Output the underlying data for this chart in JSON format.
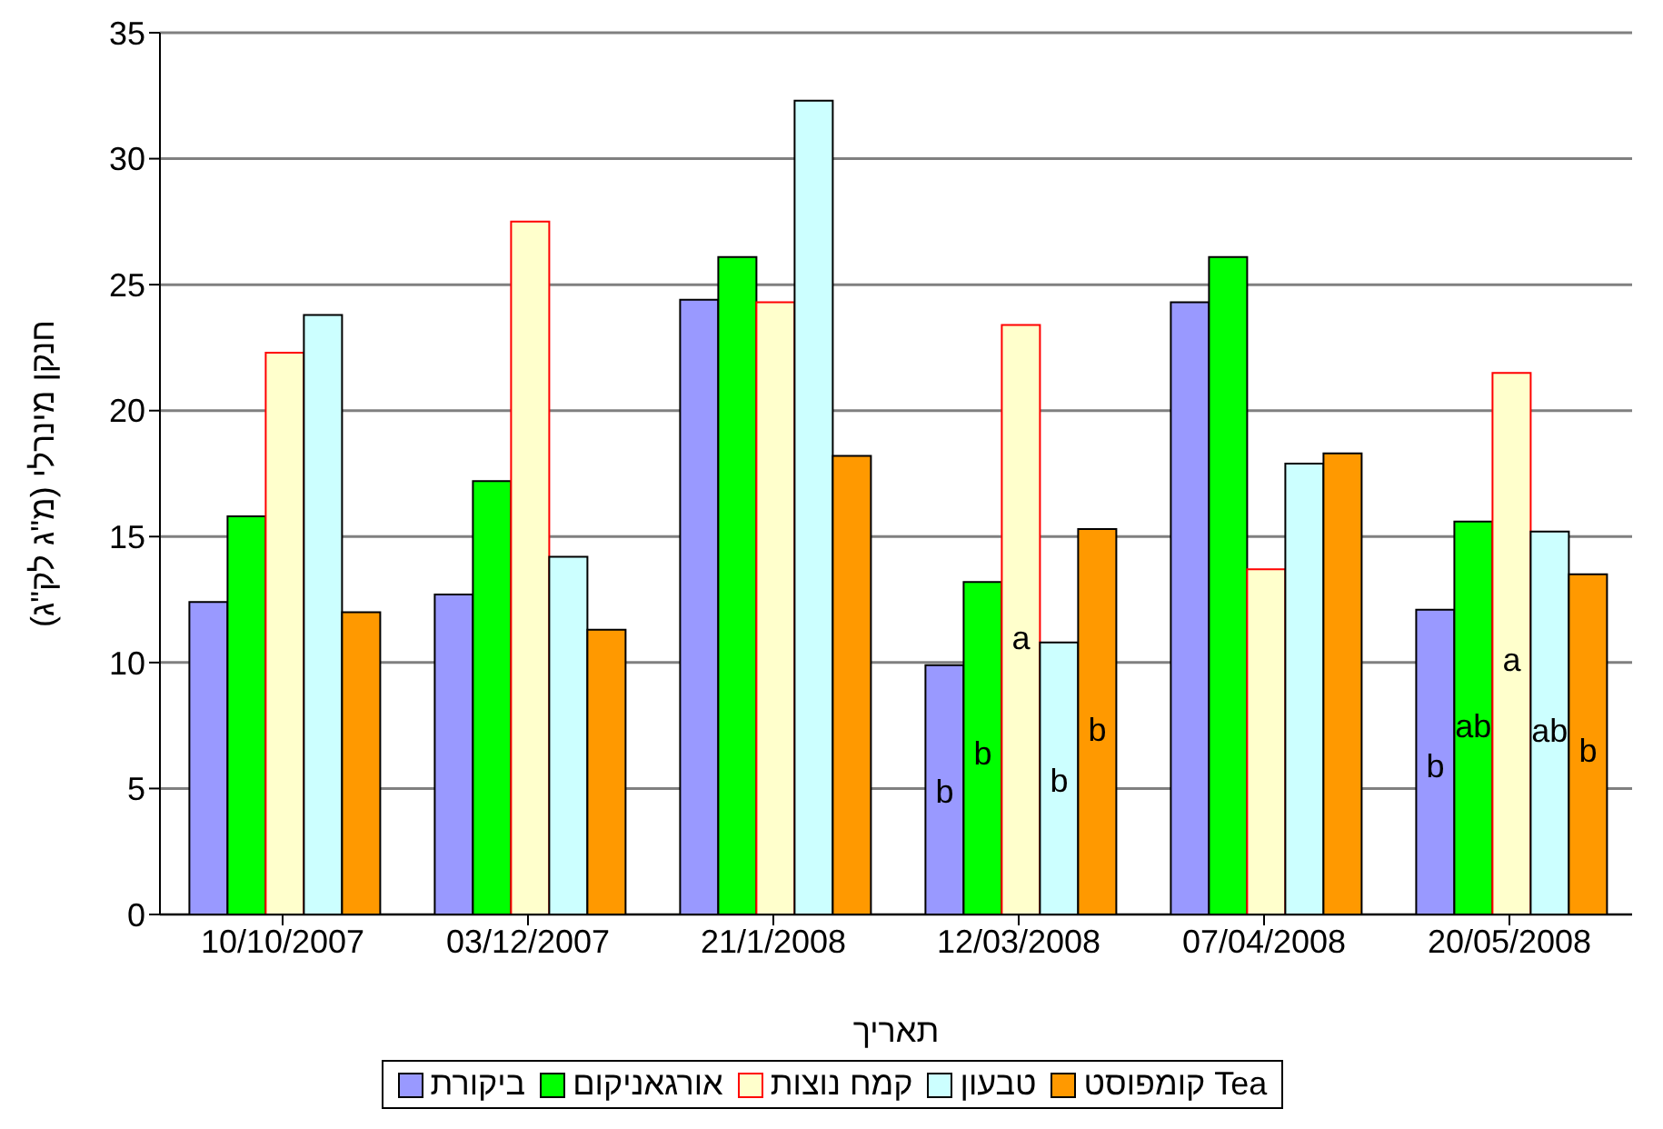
{
  "chart_data": {
    "type": "bar",
    "xlabel": "תאריך",
    "ylabel": "חנקן מינרלי (מ\"ג לק\"ג)",
    "categories": [
      "10/10/2007",
      "03/12/2007",
      "21/1/2008",
      "12/03/2008",
      "07/04/2008",
      "20/05/2008"
    ],
    "series": [
      {
        "name": "ביקורת",
        "color": "#9999ff",
        "values": [
          12.4,
          12.7,
          24.4,
          9.9,
          24.3,
          12.1
        ],
        "value_labels": [
          null,
          null,
          null,
          "b",
          null,
          "b"
        ]
      },
      {
        "name": "אורגאניקום",
        "color": "#00ff00",
        "values": [
          15.8,
          17.2,
          26.1,
          13.2,
          26.1,
          15.6
        ],
        "value_labels": [
          null,
          null,
          null,
          "b",
          null,
          "ab"
        ]
      },
      {
        "name": "קמח נוצות",
        "color": "#ffffcc",
        "values": [
          22.3,
          27.5,
          24.3,
          23.4,
          13.7,
          21.5
        ],
        "value_labels": [
          null,
          null,
          null,
          "a",
          null,
          "a"
        ]
      },
      {
        "name": "טבעון",
        "color": "#ccffff",
        "values": [
          23.8,
          14.2,
          32.3,
          10.8,
          17.9,
          15.2
        ],
        "value_labels": [
          null,
          null,
          null,
          "b",
          null,
          "ab"
        ]
      },
      {
        "name": "קומפוסט Tea",
        "color": "#ff9900",
        "values": [
          12.0,
          11.3,
          18.2,
          15.3,
          18.3,
          13.5
        ],
        "value_labels": [
          null,
          null,
          null,
          "b",
          null,
          "b"
        ]
      }
    ],
    "ylim": [
      0,
      35
    ],
    "yticks": [
      0,
      5,
      10,
      15,
      20,
      25,
      30,
      35
    ],
    "grid": "y",
    "legend": "bottom"
  }
}
